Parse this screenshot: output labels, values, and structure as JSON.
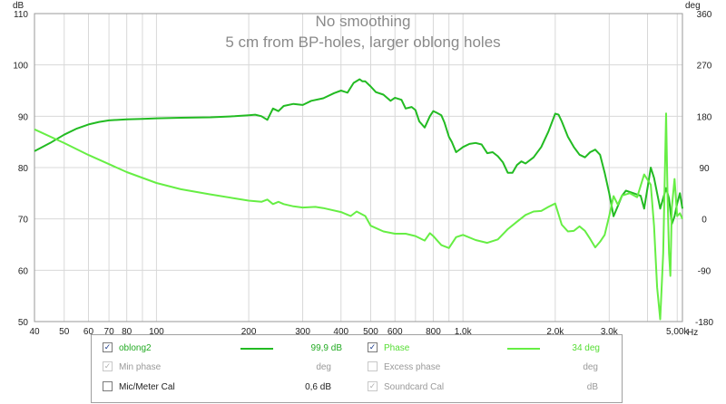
{
  "chart_data": {
    "type": "line",
    "title": "No smoothing",
    "subtitle": "5 cm from BP-holes, larger oblong holes",
    "x_scale": "log",
    "x_unit": "Hz",
    "xlim": [
      40,
      5200
    ],
    "x_ticks": [
      {
        "v": 40,
        "label": "40"
      },
      {
        "v": 50,
        "label": "50"
      },
      {
        "v": 60,
        "label": "60"
      },
      {
        "v": 70,
        "label": "70"
      },
      {
        "v": 80,
        "label": "80"
      },
      {
        "v": 100,
        "label": "100"
      },
      {
        "v": 200,
        "label": "200"
      },
      {
        "v": 300,
        "label": "300"
      },
      {
        "v": 400,
        "label": "400"
      },
      {
        "v": 500,
        "label": "500"
      },
      {
        "v": 600,
        "label": "600"
      },
      {
        "v": 800,
        "label": "800"
      },
      {
        "v": 1000,
        "label": "1,0k"
      },
      {
        "v": 2000,
        "label": "2,0k"
      },
      {
        "v": 3000,
        "label": "3,0k"
      },
      {
        "v": 5000,
        "label": "5,00k"
      }
    ],
    "y_left": {
      "unit": "dB",
      "lim": [
        50,
        110
      ],
      "ticks": [
        50,
        60,
        70,
        80,
        90,
        100,
        110
      ]
    },
    "y_right": {
      "unit": "deg",
      "lim": [
        -180,
        360
      ],
      "ticks": [
        -180,
        -90,
        0,
        90,
        180,
        270,
        360
      ]
    },
    "grid": true,
    "series": [
      {
        "name": "oblong2",
        "axis": "left",
        "color": "#22bb22",
        "x": [
          40,
          45,
          50,
          55,
          60,
          65,
          70,
          80,
          90,
          100,
          120,
          150,
          180,
          200,
          210,
          220,
          230,
          240,
          250,
          260,
          280,
          300,
          320,
          350,
          380,
          400,
          420,
          440,
          460,
          470,
          480,
          500,
          520,
          550,
          580,
          600,
          630,
          650,
          680,
          700,
          720,
          750,
          780,
          800,
          820,
          850,
          870,
          900,
          920,
          950,
          1000,
          1050,
          1100,
          1150,
          1200,
          1250,
          1300,
          1350,
          1400,
          1450,
          1500,
          1550,
          1600,
          1700,
          1800,
          1900,
          2000,
          2050,
          2100,
          2200,
          2300,
          2400,
          2500,
          2600,
          2700,
          2800,
          2900,
          3000,
          3100,
          3200,
          3300,
          3400,
          3600,
          3800,
          3900,
          4000,
          4100,
          4200,
          4400,
          4600,
          4700,
          4800,
          4900,
          5000,
          5100,
          5200
        ],
        "y": [
          83.2,
          84.8,
          86.4,
          87.6,
          88.4,
          88.9,
          89.2,
          89.4,
          89.5,
          89.6,
          89.7,
          89.8,
          90.0,
          90.2,
          90.3,
          90.0,
          89.3,
          91.5,
          91.0,
          92.0,
          92.4,
          92.2,
          93.0,
          93.5,
          94.5,
          95.0,
          94.6,
          96.5,
          97.2,
          96.8,
          96.8,
          95.8,
          94.7,
          94.2,
          93.0,
          93.6,
          93.2,
          91.5,
          91.8,
          91.2,
          89.0,
          87.8,
          90.0,
          91.0,
          90.7,
          90.2,
          88.8,
          86.0,
          85.0,
          83.0,
          84.0,
          84.6,
          84.8,
          84.5,
          82.8,
          83.0,
          82.2,
          81.0,
          79.0,
          79.0,
          80.5,
          81.2,
          80.8,
          82.0,
          84.0,
          87.0,
          90.5,
          90.3,
          89.0,
          86.0,
          84.0,
          82.5,
          82.0,
          83.0,
          83.5,
          82.5,
          79.0,
          75.0,
          70.5,
          72.5,
          74.5,
          75.5,
          75.0,
          74.5,
          72.0,
          76.0,
          80.0,
          78.0,
          72.0,
          76.0,
          74.0,
          69.0,
          70.5,
          73.0,
          75.0,
          72.0
        ],
        "legend_value": "99,9 dB"
      },
      {
        "name": "Phase",
        "axis": "right",
        "color": "#66ee44",
        "x": [
          40,
          50,
          60,
          70,
          80,
          100,
          120,
          150,
          180,
          200,
          220,
          230,
          240,
          250,
          260,
          280,
          300,
          330,
          350,
          400,
          430,
          450,
          480,
          500,
          550,
          600,
          650,
          700,
          750,
          780,
          800,
          850,
          900,
          950,
          1000,
          1100,
          1200,
          1300,
          1400,
          1500,
          1600,
          1700,
          1800,
          1900,
          2000,
          2100,
          2200,
          2300,
          2400,
          2500,
          2600,
          2700,
          2800,
          2900,
          3000,
          3100,
          3200,
          3300,
          3500,
          3700,
          3900,
          4100,
          4200,
          4300,
          4400,
          4500,
          4600,
          4650,
          4700,
          4750,
          4800,
          4900,
          5000,
          5100,
          5200
        ],
        "y": [
          157,
          133,
          112,
          96,
          82,
          63,
          52,
          43,
          36,
          32,
          30,
          34,
          26,
          30,
          26,
          22,
          20,
          21,
          19,
          12,
          5,
          13,
          5,
          -12,
          -22,
          -26,
          -26,
          -30,
          -38,
          -25,
          -30,
          -46,
          -51,
          -32,
          -28,
          -37,
          -42,
          -36,
          -18,
          -5,
          7,
          13,
          14,
          21,
          27,
          -10,
          -22,
          -21,
          -13,
          -21,
          -35,
          -50,
          -40,
          -28,
          5,
          40,
          25,
          41,
          45,
          38,
          78,
          60,
          -12,
          -120,
          -176,
          -60,
          185,
          40,
          -60,
          -100,
          20,
          70,
          5,
          10,
          0
        ],
        "legend_value": "34 deg"
      }
    ]
  },
  "legend": {
    "rows": [
      {
        "left": {
          "checked": true,
          "label": "oblong2",
          "value": "99,9 dB",
          "color": "#22bb22",
          "enabled": true
        },
        "right": {
          "checked": true,
          "label": "Phase",
          "value": "34 deg",
          "color": "#66ee44",
          "enabled": true
        }
      },
      {
        "left": {
          "checked": true,
          "label": "Min phase",
          "value": "deg",
          "enabled": false
        },
        "right": {
          "checked": false,
          "label": "Excess phase",
          "value": "deg",
          "enabled": false
        }
      },
      {
        "left": {
          "checked": false,
          "label": "Mic/Meter Cal",
          "value": "0,6 dB",
          "enabled": true
        },
        "right": {
          "checked": true,
          "label": "Soundcard Cal",
          "value": "dB",
          "enabled": false
        }
      }
    ]
  },
  "colors": {
    "grid": "#d8d8d8",
    "axis": "#9a9a9a",
    "title": "#8a8a8a"
  }
}
